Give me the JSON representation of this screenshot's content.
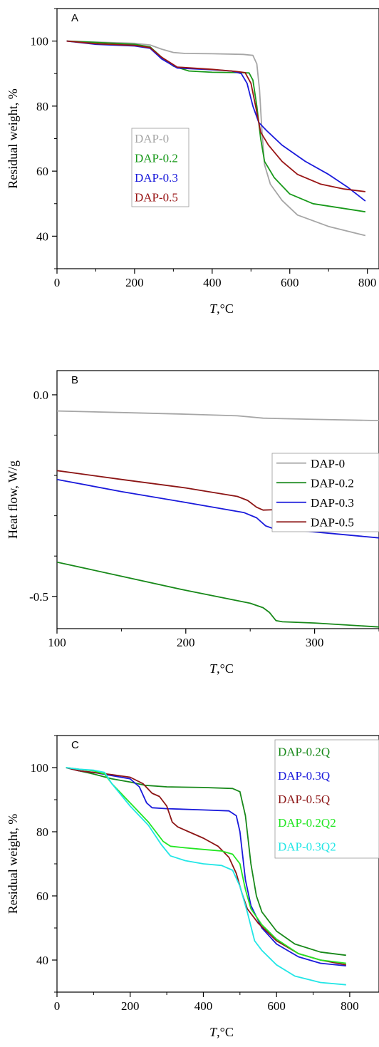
{
  "chart_data": [
    {
      "id": "A",
      "type": "line",
      "panel_label": "A",
      "xlabel": "T,°C",
      "ylabel": "Residual weight, %",
      "xlim": [
        0,
        830
      ],
      "ylim": [
        30,
        110
      ],
      "xticks": [
        0,
        200,
        400,
        600,
        800
      ],
      "yticks": [
        40,
        60,
        80,
        100
      ],
      "legend": {
        "placement": "center-left",
        "box": true,
        "colored_text": true
      },
      "series": [
        {
          "name": "DAP-0",
          "color": "#a6a6a6",
          "points": [
            [
              25,
              100
            ],
            [
              100,
              99.7
            ],
            [
              200,
              99.3
            ],
            [
              240,
              98.8
            ],
            [
              270,
              97.5
            ],
            [
              300,
              96.5
            ],
            [
              330,
              96.2
            ],
            [
              400,
              96.1
            ],
            [
              480,
              95.9
            ],
            [
              505,
              95.6
            ],
            [
              515,
              93
            ],
            [
              522,
              85
            ],
            [
              528,
              73
            ],
            [
              535,
              62
            ],
            [
              550,
              56
            ],
            [
              580,
              51
            ],
            [
              620,
              46.5
            ],
            [
              700,
              43
            ],
            [
              795,
              40.2
            ]
          ]
        },
        {
          "name": "DAP-0.2",
          "color": "#18991a",
          "points": [
            [
              25,
              100
            ],
            [
              100,
              99.6
            ],
            [
              200,
              99
            ],
            [
              240,
              98.2
            ],
            [
              270,
              95
            ],
            [
              300,
              92.3
            ],
            [
              340,
              90.8
            ],
            [
              400,
              90.4
            ],
            [
              470,
              90.3
            ],
            [
              495,
              90.2
            ],
            [
              505,
              88
            ],
            [
              515,
              80
            ],
            [
              525,
              70
            ],
            [
              535,
              63
            ],
            [
              560,
              58
            ],
            [
              600,
              53
            ],
            [
              660,
              50
            ],
            [
              795,
              47.5
            ]
          ]
        },
        {
          "name": "DAP-0.3",
          "color": "#1a1adb",
          "points": [
            [
              25,
              100
            ],
            [
              100,
              99
            ],
            [
              200,
              98.5
            ],
            [
              240,
              97.8
            ],
            [
              270,
              94.5
            ],
            [
              310,
              91.7
            ],
            [
              400,
              91.2
            ],
            [
              450,
              90.8
            ],
            [
              475,
              90
            ],
            [
              490,
              87
            ],
            [
              505,
              80
            ],
            [
              520,
              75
            ],
            [
              540,
              72.5
            ],
            [
              580,
              68
            ],
            [
              640,
              63
            ],
            [
              700,
              59
            ],
            [
              750,
              55
            ],
            [
              795,
              50.8
            ]
          ]
        },
        {
          "name": "DAP-0.5",
          "color": "#991515",
          "points": [
            [
              25,
              100
            ],
            [
              100,
              99.2
            ],
            [
              200,
              98.7
            ],
            [
              240,
              98
            ],
            [
              270,
              95
            ],
            [
              310,
              92
            ],
            [
              400,
              91.3
            ],
            [
              460,
              90.7
            ],
            [
              485,
              90.3
            ],
            [
              500,
              87
            ],
            [
              512,
              80
            ],
            [
              525,
              72
            ],
            [
              545,
              68
            ],
            [
              580,
              63
            ],
            [
              620,
              59
            ],
            [
              680,
              56
            ],
            [
              740,
              54.5
            ],
            [
              795,
              53.7
            ]
          ]
        }
      ]
    },
    {
      "id": "B",
      "type": "line",
      "panel_label": "B",
      "xlabel": "T,°C",
      "ylabel": "Heat flow, W/g",
      "xlim": [
        100,
        350
      ],
      "ylim": [
        -0.58,
        0.06
      ],
      "xticks": [
        100,
        200,
        300
      ],
      "yticks": [
        0.0,
        -0.5
      ],
      "ytick_labels": [
        "0.0",
        "-0.5"
      ],
      "legend": {
        "placement": "top-right",
        "box": true,
        "colored_text": false
      },
      "series": [
        {
          "name": "DAP-0",
          "color": "#a6a6a6",
          "points": [
            [
              100,
              -0.04
            ],
            [
              150,
              -0.044
            ],
            [
              200,
              -0.048
            ],
            [
              240,
              -0.052
            ],
            [
              250,
              -0.055
            ],
            [
              260,
              -0.058
            ],
            [
              300,
              -0.061
            ],
            [
              350,
              -0.064
            ]
          ]
        },
        {
          "name": "DAP-0.2",
          "color": "#18891a",
          "points": [
            [
              100,
              -0.415
            ],
            [
              150,
              -0.45
            ],
            [
              200,
              -0.485
            ],
            [
              250,
              -0.517
            ],
            [
              260,
              -0.528
            ],
            [
              265,
              -0.54
            ],
            [
              270,
              -0.56
            ],
            [
              275,
              -0.563
            ],
            [
              300,
              -0.566
            ],
            [
              350,
              -0.576
            ]
          ]
        },
        {
          "name": "DAP-0.3",
          "color": "#1a1adb",
          "points": [
            [
              100,
              -0.21
            ],
            [
              150,
              -0.24
            ],
            [
              200,
              -0.267
            ],
            [
              245,
              -0.292
            ],
            [
              255,
              -0.305
            ],
            [
              262,
              -0.325
            ],
            [
              268,
              -0.332
            ],
            [
              275,
              -0.333
            ],
            [
              300,
              -0.34
            ],
            [
              350,
              -0.355
            ]
          ]
        },
        {
          "name": "DAP-0.5",
          "color": "#8c1515",
          "points": [
            [
              100,
              -0.188
            ],
            [
              150,
              -0.21
            ],
            [
              200,
              -0.231
            ],
            [
              240,
              -0.252
            ],
            [
              248,
              -0.262
            ],
            [
              255,
              -0.279
            ],
            [
              260,
              -0.286
            ],
            [
              270,
              -0.285
            ],
            [
              300,
              -0.29
            ],
            [
              350,
              -0.298
            ]
          ]
        }
      ]
    },
    {
      "id": "C",
      "type": "line",
      "panel_label": "C",
      "xlabel": "T,°C",
      "ylabel": "Residual weight, %",
      "xlim": [
        0,
        880
      ],
      "ylim": [
        30,
        110
      ],
      "xticks": [
        0,
        200,
        400,
        600,
        800
      ],
      "yticks": [
        40,
        60,
        80,
        100
      ],
      "legend": {
        "placement": "top-right",
        "box": true,
        "colored_text": true
      },
      "series": [
        {
          "name": "DAP-0.2Q",
          "color": "#18891a",
          "points": [
            [
              25,
              100
            ],
            [
              60,
              99
            ],
            [
              100,
              98
            ],
            [
              150,
              96.5
            ],
            [
              200,
              95.5
            ],
            [
              240,
              94.5
            ],
            [
              300,
              94
            ],
            [
              400,
              93.8
            ],
            [
              480,
              93.5
            ],
            [
              500,
              92.5
            ],
            [
              515,
              85
            ],
            [
              530,
              70
            ],
            [
              545,
              60
            ],
            [
              560,
              55
            ],
            [
              600,
              49
            ],
            [
              650,
              45
            ],
            [
              720,
              42.5
            ],
            [
              790,
              41.5
            ]
          ]
        },
        {
          "name": "DAP-0.3Q",
          "color": "#1a1adb",
          "points": [
            [
              25,
              100
            ],
            [
              60,
              99
            ],
            [
              100,
              98.5
            ],
            [
              150,
              97.5
            ],
            [
              200,
              96.5
            ],
            [
              225,
              94
            ],
            [
              245,
              89
            ],
            [
              260,
              87.5
            ],
            [
              300,
              87.2
            ],
            [
              400,
              86.8
            ],
            [
              470,
              86.5
            ],
            [
              490,
              85
            ],
            [
              500,
              80
            ],
            [
              515,
              65
            ],
            [
              530,
              57
            ],
            [
              560,
              50
            ],
            [
              600,
              45
            ],
            [
              660,
              41
            ],
            [
              720,
              39
            ],
            [
              790,
              38.2
            ]
          ]
        },
        {
          "name": "DAP-0.5Q",
          "color": "#8c1515",
          "points": [
            [
              25,
              100
            ],
            [
              60,
              99
            ],
            [
              100,
              98.5
            ],
            [
              150,
              97.8
            ],
            [
              200,
              97
            ],
            [
              235,
              95
            ],
            [
              260,
              92
            ],
            [
              280,
              91
            ],
            [
              300,
              88
            ],
            [
              315,
              83
            ],
            [
              330,
              81.5
            ],
            [
              360,
              80
            ],
            [
              400,
              78
            ],
            [
              440,
              75.5
            ],
            [
              470,
              72
            ],
            [
              490,
              67
            ],
            [
              505,
              61
            ],
            [
              520,
              56
            ],
            [
              550,
              51.5
            ],
            [
              600,
              46
            ],
            [
              660,
              42
            ],
            [
              720,
              40
            ],
            [
              790,
              38.5
            ]
          ]
        },
        {
          "name": "DAP-0.2Q2",
          "color": "#22e622",
          "points": [
            [
              25,
              100
            ],
            [
              60,
              99.5
            ],
            [
              100,
              99
            ],
            [
              130,
              98
            ],
            [
              150,
              95
            ],
            [
              200,
              89
            ],
            [
              250,
              83
            ],
            [
              290,
              77
            ],
            [
              310,
              75.5
            ],
            [
              350,
              75
            ],
            [
              400,
              74.5
            ],
            [
              450,
              74
            ],
            [
              480,
              73
            ],
            [
              500,
              70
            ],
            [
              515,
              62
            ],
            [
              530,
              56
            ],
            [
              560,
              51
            ],
            [
              600,
              46.5
            ],
            [
              660,
              42
            ],
            [
              720,
              40
            ],
            [
              790,
              39
            ]
          ]
        },
        {
          "name": "DAP-0.3Q2",
          "color": "#22e6e6",
          "points": [
            [
              25,
              100
            ],
            [
              60,
              99.5
            ],
            [
              100,
              99.2
            ],
            [
              130,
              98.5
            ],
            [
              150,
              95
            ],
            [
              200,
              88
            ],
            [
              250,
              82
            ],
            [
              285,
              76
            ],
            [
              310,
              72.5
            ],
            [
              350,
              71
            ],
            [
              400,
              70
            ],
            [
              450,
              69.5
            ],
            [
              480,
              68
            ],
            [
              500,
              63
            ],
            [
              520,
              55
            ],
            [
              540,
              46
            ],
            [
              560,
              43
            ],
            [
              600,
              38.5
            ],
            [
              650,
              35
            ],
            [
              720,
              33
            ],
            [
              790,
              32.3
            ]
          ]
        }
      ]
    }
  ]
}
